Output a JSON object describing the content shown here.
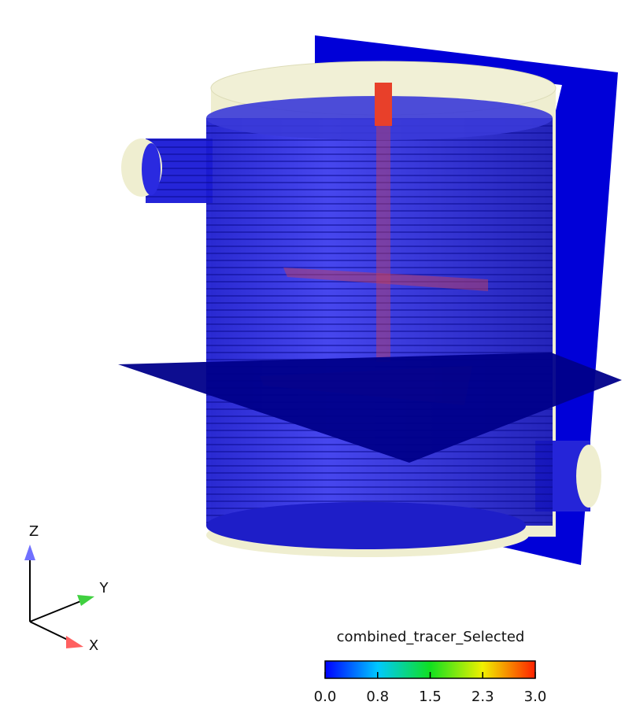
{
  "axes_triad": {
    "z": "Z",
    "y": "Y",
    "x": "X"
  },
  "colorbar": {
    "title": "combined_tracer_Selected",
    "range": [
      0,
      3
    ],
    "ticks": [
      {
        "value": 0,
        "label": "0.0"
      },
      {
        "value": 0.75,
        "label": "0.8"
      },
      {
        "value": 1.5,
        "label": "1.5"
      },
      {
        "value": 2.25,
        "label": "2.3"
      },
      {
        "value": 3,
        "label": "3.0"
      }
    ]
  }
}
